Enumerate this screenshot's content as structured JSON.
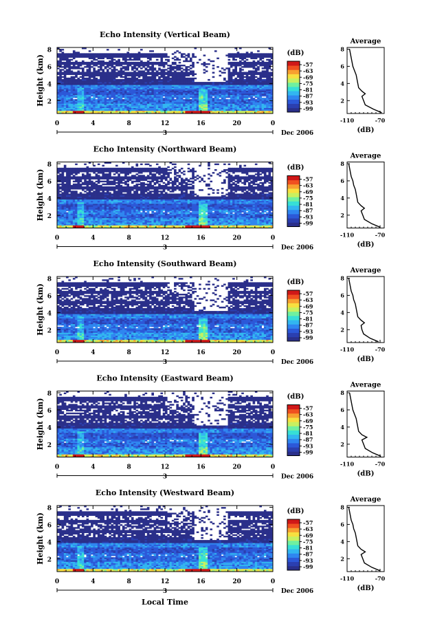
{
  "figure": {
    "xlabel": "Local Time",
    "date_label": "Dec 2006",
    "day_label": "3",
    "colorbar_unit": "(dB)",
    "colorbar_ticks": [
      "-57",
      "-63",
      "-69",
      "-75",
      "-81",
      "-87",
      "-93",
      "-99"
    ],
    "colormap": [
      "#2a2f8a",
      "#2b3fb0",
      "#2c58d8",
      "#2f86f0",
      "#32b6f0",
      "#37dfd6",
      "#6ff0a0",
      "#c8f060",
      "#f7e040",
      "#f7a030",
      "#f05020",
      "#d01818"
    ],
    "background_color": "#ffffff",
    "profile_title": "Average",
    "profile_xlabel": "(dB)"
  },
  "chart_data": [
    {
      "type": "heatmap",
      "title": "Echo Intensity (Vertical Beam)",
      "ylabel": "Height (km)",
      "x_ticks": [
        "0",
        "4",
        "8",
        "12",
        "16",
        "20",
        "0"
      ],
      "xlim": [
        0,
        24
      ],
      "y_ticks": [
        "2",
        "4",
        "6",
        "8"
      ],
      "ylim": [
        0.5,
        8.2
      ],
      "clim": [
        -99,
        -57
      ],
      "profile": {
        "x_ticks": [
          "-110",
          "-70"
        ],
        "xlim": [
          -110,
          -65
        ],
        "y_ticks": [
          "2",
          "4",
          "6",
          "8"
        ],
        "ylim": [
          0.5,
          8.2
        ],
        "height": [
          0.6,
          1.0,
          1.5,
          2.0,
          2.5,
          2.8,
          3.1,
          3.5,
          4.0,
          4.5,
          5.0,
          5.5,
          6.0,
          6.5,
          7.0,
          7.5,
          8.0
        ],
        "value": [
          -68,
          -78,
          -88,
          -90,
          -92,
          -88,
          -92,
          -96,
          -97,
          -98,
          -99,
          -101,
          -103,
          -104,
          -105,
          -106,
          -107
        ]
      }
    },
    {
      "type": "heatmap",
      "title": "Echo Intensity (Northward Beam)",
      "ylabel": "Height (km)",
      "x_ticks": [
        "0",
        "4",
        "8",
        "12",
        "16",
        "20",
        "0"
      ],
      "xlim": [
        0,
        24
      ],
      "y_ticks": [
        "2",
        "4",
        "6",
        "8"
      ],
      "ylim": [
        0.5,
        8.2
      ],
      "clim": [
        -99,
        -57
      ],
      "profile": {
        "x_ticks": [
          "-110",
          "-70"
        ],
        "xlim": [
          -110,
          -65
        ],
        "y_ticks": [
          "2",
          "4",
          "6",
          "8"
        ],
        "ylim": [
          0.5,
          8.2
        ],
        "height": [
          0.6,
          1.0,
          1.5,
          2.0,
          2.5,
          2.8,
          3.1,
          3.5,
          4.0,
          4.5,
          5.0,
          5.5,
          6.0,
          6.5,
          7.0,
          7.5,
          8.0
        ],
        "value": [
          -70,
          -80,
          -89,
          -91,
          -93,
          -89,
          -93,
          -97,
          -98,
          -99,
          -100,
          -102,
          -103,
          -105,
          -106,
          -107,
          -108
        ]
      }
    },
    {
      "type": "heatmap",
      "title": "Echo Intensity (Southward Beam)",
      "ylabel": "Height (km)",
      "x_ticks": [
        "0",
        "4",
        "8",
        "12",
        "16",
        "20",
        "0"
      ],
      "xlim": [
        0,
        24
      ],
      "y_ticks": [
        "2",
        "4",
        "6",
        "8"
      ],
      "ylim": [
        0.5,
        8.2
      ],
      "clim": [
        -99,
        -57
      ],
      "profile": {
        "x_ticks": [
          "-110",
          "-70"
        ],
        "xlim": [
          -110,
          -65
        ],
        "y_ticks": [
          "2",
          "4",
          "6",
          "8"
        ],
        "ylim": [
          0.5,
          8.2
        ],
        "height": [
          0.6,
          1.0,
          1.5,
          2.0,
          2.5,
          2.8,
          3.1,
          3.5,
          4.0,
          4.5,
          5.0,
          5.5,
          6.0,
          6.5,
          7.0,
          7.5,
          8.0
        ],
        "value": [
          -72,
          -82,
          -90,
          -92,
          -93,
          -89,
          -93,
          -97,
          -98,
          -99,
          -100,
          -102,
          -103,
          -105,
          -106,
          -107,
          -108
        ]
      }
    },
    {
      "type": "heatmap",
      "title": "Echo Intensity (Eastward Beam)",
      "ylabel": "Height (km)",
      "x_ticks": [
        "0",
        "4",
        "8",
        "12",
        "16",
        "20",
        "0"
      ],
      "xlim": [
        0,
        24
      ],
      "y_ticks": [
        "2",
        "4",
        "6",
        "8"
      ],
      "ylim": [
        0.5,
        8.2
      ],
      "clim": [
        -99,
        -57
      ],
      "profile": {
        "x_ticks": [
          "-110",
          "-70"
        ],
        "xlim": [
          -110,
          -65
        ],
        "y_ticks": [
          "2",
          "4",
          "6",
          "8"
        ],
        "ylim": [
          0.5,
          8.2
        ],
        "height": [
          0.6,
          1.0,
          1.5,
          2.0,
          2.5,
          2.8,
          3.1,
          3.5,
          4.0,
          4.5,
          5.0,
          5.5,
          6.0,
          6.5,
          7.0,
          7.5,
          8.0
        ],
        "value": [
          -69,
          -79,
          -88,
          -90,
          -92,
          -86,
          -92,
          -96,
          -97,
          -98,
          -99,
          -101,
          -103,
          -104,
          -105,
          -106,
          -107
        ]
      }
    },
    {
      "type": "heatmap",
      "title": "Echo Intensity (Westward Beam)",
      "ylabel": "Height (km)",
      "x_ticks": [
        "0",
        "4",
        "8",
        "12",
        "16",
        "20",
        "0"
      ],
      "xlim": [
        0,
        24
      ],
      "y_ticks": [
        "2",
        "4",
        "6",
        "8"
      ],
      "ylim": [
        0.5,
        8.2
      ],
      "clim": [
        -99,
        -57
      ],
      "profile": {
        "x_ticks": [
          "-110",
          "-70"
        ],
        "xlim": [
          -110,
          -65
        ],
        "y_ticks": [
          "2",
          "4",
          "6",
          "8"
        ],
        "ylim": [
          0.5,
          8.2
        ],
        "height": [
          0.6,
          1.0,
          1.5,
          2.0,
          2.5,
          2.8,
          3.1,
          3.5,
          4.0,
          4.5,
          5.0,
          5.5,
          6.0,
          6.5,
          7.0,
          7.5,
          8.0
        ],
        "value": [
          -70,
          -80,
          -89,
          -91,
          -93,
          -88,
          -93,
          -97,
          -98,
          -99,
          -100,
          -102,
          -103,
          -105,
          -106,
          -107,
          -108
        ]
      }
    }
  ]
}
